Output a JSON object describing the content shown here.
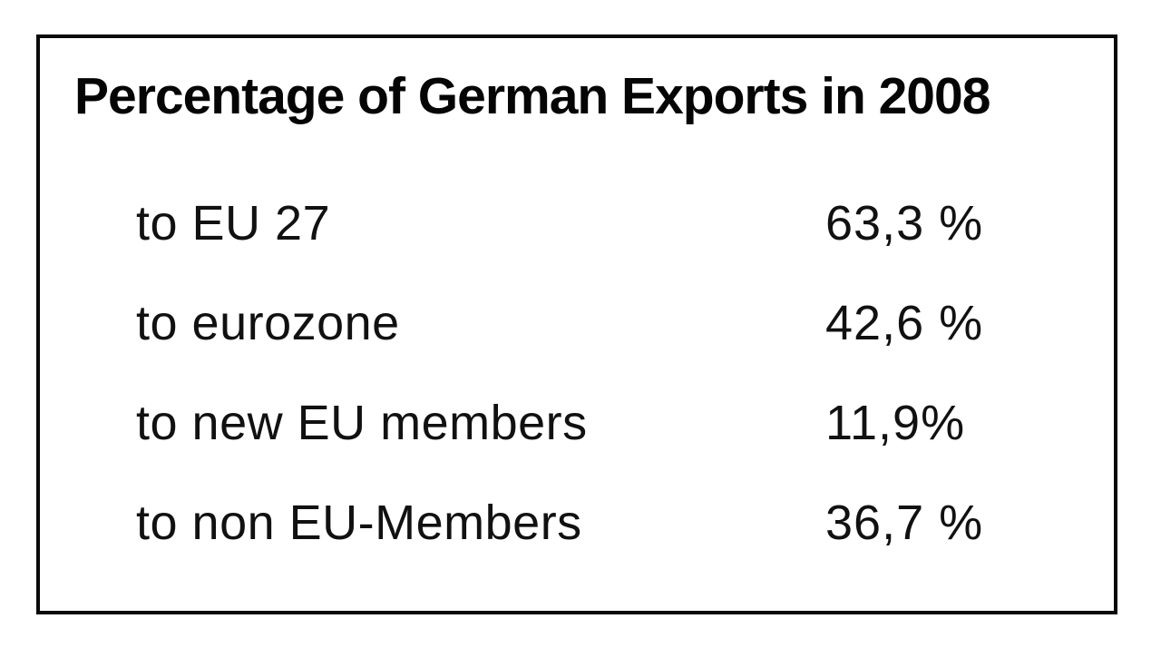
{
  "figure": {
    "title": "Percentage of German Exports in 2008"
  },
  "table": {
    "rows": [
      {
        "label": "to EU 27",
        "value": "63,3 %"
      },
      {
        "label": "to eurozone",
        "value": "42,6 %"
      },
      {
        "label": "to new EU members",
        "value": "11,9%"
      },
      {
        "label": "to non EU-Members",
        "value": "36,7 %"
      }
    ]
  },
  "chart_data": {
    "type": "table",
    "title": "Percentage of German Exports in 2008",
    "categories": [
      "to EU 27",
      "to eurozone",
      "to new EU members",
      "to non EU-Members"
    ],
    "values": [
      63.3,
      42.6,
      11.9,
      36.7
    ],
    "value_labels": [
      "63,3 %",
      "42,6 %",
      "11,9%",
      "36,7 %"
    ],
    "unit": "%",
    "decimal_separator": ",",
    "layout": {
      "border": "black frame",
      "text_color": "#000000",
      "background": "#ffffff",
      "title_bold": true
    }
  },
  "colors": {
    "border": "#0a0a0a",
    "text": "#000000",
    "background": "#ffffff"
  }
}
